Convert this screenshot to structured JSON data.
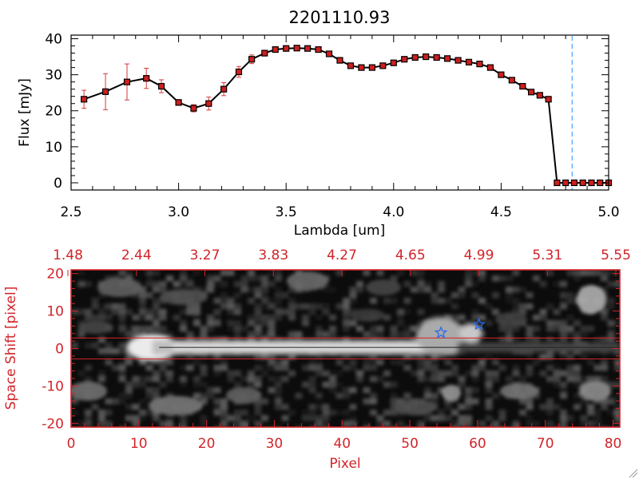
{
  "colors": {
    "axis_black": "#000000",
    "axis_red": "#d2242a",
    "marker_red": "#cc1f1f",
    "errorbar_red": "#d63a3a",
    "cutoff_line": "#1e90ff",
    "star_blue": "#2b6cf0",
    "trace_line": "#d2242a"
  },
  "chart_data": [
    {
      "type": "line",
      "title": "2201110.93",
      "xlabel": "Lambda [um]",
      "ylabel": "Flux [mJy]",
      "xlim": [
        2.5,
        5.0
      ],
      "ylim": [
        -2,
        41
      ],
      "xticks": [
        "2.5",
        "3.0",
        "3.5",
        "4.0",
        "4.5",
        "5.0"
      ],
      "xtick_values": [
        2.5,
        3.0,
        3.5,
        4.0,
        4.5,
        5.0
      ],
      "yticks": [
        "0",
        "10",
        "20",
        "30",
        "40"
      ],
      "ytick_values": [
        0,
        10,
        20,
        30,
        40
      ],
      "cutoff_wavelength": 4.83,
      "series": [
        {
          "x": [
            2.56,
            2.66,
            2.76,
            2.85,
            2.92,
            3.0,
            3.07,
            3.14,
            3.21,
            3.28,
            3.34,
            3.4,
            3.45,
            3.5,
            3.55,
            3.6,
            3.65,
            3.7,
            3.75,
            3.8,
            3.85,
            3.9,
            3.95,
            4.0,
            4.05,
            4.1,
            4.15,
            4.2,
            4.25,
            4.3,
            4.35,
            4.4,
            4.45,
            4.5,
            4.55,
            4.6,
            4.64,
            4.68,
            4.72,
            4.76,
            4.8,
            4.84,
            4.88,
            4.92,
            4.96,
            5.0
          ],
          "y": [
            23.2,
            25.3,
            28.0,
            29.0,
            26.8,
            22.3,
            20.7,
            22.0,
            26.0,
            30.8,
            34.3,
            36.0,
            37.0,
            37.3,
            37.4,
            37.3,
            37.0,
            35.8,
            34.0,
            32.5,
            32.0,
            32.0,
            32.5,
            33.3,
            34.3,
            34.8,
            35.0,
            34.8,
            34.5,
            34.0,
            33.5,
            33.0,
            32.0,
            30.0,
            28.5,
            26.8,
            25.2,
            24.3,
            23.2,
            0,
            0,
            0,
            0,
            0,
            0,
            0
          ],
          "yerr": [
            2.5,
            5.0,
            5.0,
            2.8,
            1.8,
            0.8,
            1.0,
            1.8,
            1.8,
            1.5,
            1.2,
            0.8,
            0.5,
            0.5,
            0.5,
            0.5,
            0.5,
            0.5,
            0.5,
            0.5,
            0.5,
            0.5,
            0.5,
            0.5,
            0.5,
            0.5,
            0.5,
            0.5,
            0.5,
            0.5,
            0.5,
            0.5,
            0.5,
            0.5,
            0.5,
            0.5,
            0.5,
            0.5,
            0.5,
            0,
            0,
            0,
            0,
            0,
            0,
            0
          ]
        }
      ]
    },
    {
      "type": "heatmap",
      "title": "",
      "xlabel": "Pixel",
      "ylabel": "Space Shift [pixel]",
      "xlim": [
        0,
        81
      ],
      "ylim": [
        -21,
        21
      ],
      "xticks": [
        "0",
        "10",
        "20",
        "30",
        "40",
        "50",
        "60",
        "70",
        "80"
      ],
      "xtick_values": [
        0,
        10,
        20,
        30,
        40,
        50,
        60,
        70,
        80
      ],
      "yticks": [
        "-20",
        "-10",
        "0",
        "10",
        "20"
      ],
      "ytick_values": [
        -20,
        -10,
        0,
        10,
        20
      ],
      "top_axis_ticks": [
        "1.48",
        "2.44",
        "3.27",
        "3.83",
        "4.27",
        "4.65",
        "4.99",
        "5.31",
        "5.55"
      ],
      "trace_lines_y": [
        2.8,
        -2.8
      ],
      "trace_center_y": 0.3,
      "star_markers": [
        {
          "x": 54.6,
          "y": 4.2
        },
        {
          "x": 60.2,
          "y": 6.4
        }
      ]
    }
  ]
}
